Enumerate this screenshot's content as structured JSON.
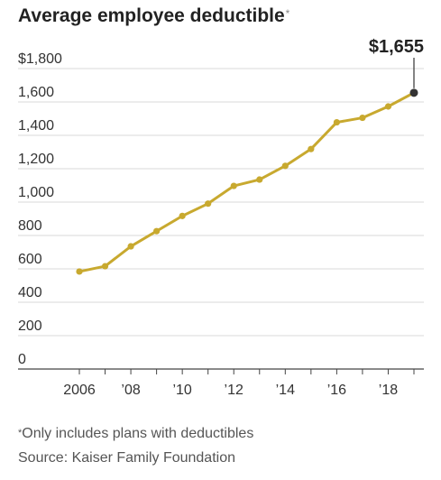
{
  "chart_data": {
    "type": "line",
    "title": "Average employee deductible",
    "title_marker": "*",
    "x": [
      2006,
      2007,
      2008,
      2009,
      2010,
      2011,
      2012,
      2013,
      2014,
      2015,
      2016,
      2017,
      2018,
      2019
    ],
    "x_tick_values": [
      2006,
      2008,
      2010,
      2012,
      2014,
      2016,
      2018
    ],
    "x_tick_labels": [
      "2006",
      "’08",
      "’10",
      "’12",
      "’14",
      "’16",
      "’18"
    ],
    "series": [
      {
        "values": [
          584,
          616,
          735,
          826,
          917,
          991,
          1097,
          1135,
          1217,
          1318,
          1478,
          1505,
          1573,
          1655
        ]
      }
    ],
    "ylim": [
      0,
      1800
    ],
    "y_tick_values": [
      0,
      200,
      400,
      600,
      800,
      1000,
      1200,
      1400,
      1600,
      1800
    ],
    "y_tick_labels": [
      "0",
      "200",
      "400",
      "600",
      "800",
      "1,000",
      "1,200",
      "1,400",
      "1,600",
      "$1,800"
    ],
    "xlim": [
      2006,
      2019
    ],
    "grid": true,
    "callout": {
      "label": "$1,655",
      "x": 2019,
      "value": 1655
    },
    "line_color": "#c8a92f",
    "end_point_color": "#333333"
  },
  "footnotes": {
    "marker": "*",
    "note": "Only includes plans with deductibles",
    "source": "Source: Kaiser Family Foundation"
  }
}
